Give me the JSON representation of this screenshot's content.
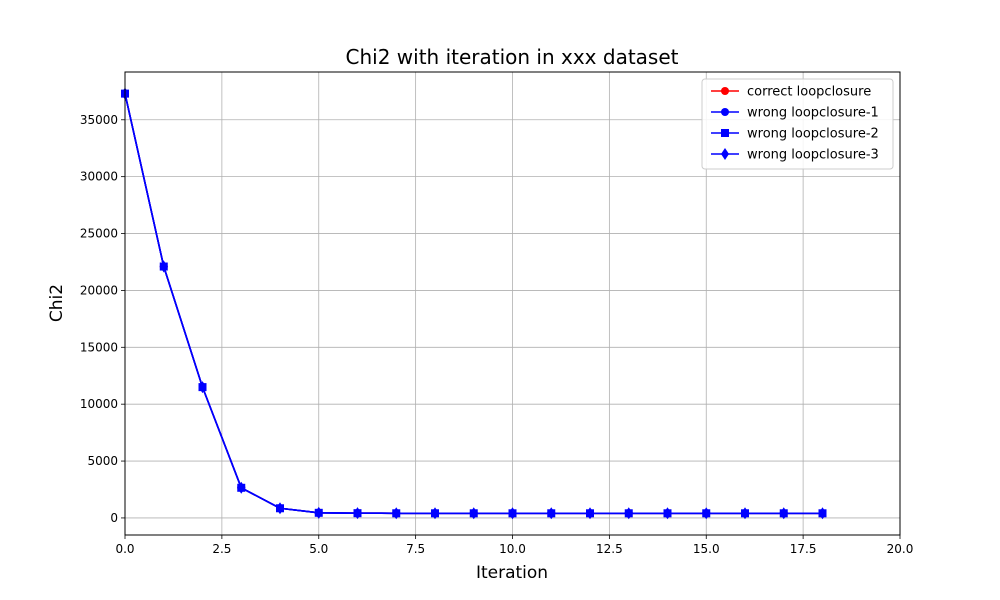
{
  "chart_data": {
    "type": "line",
    "title": "Chi2 with iteration in xxx dataset",
    "xlabel": "Iteration",
    "ylabel": "Chi2",
    "xlim": [
      0,
      20
    ],
    "ylim": [
      -1500,
      39200
    ],
    "xticks": [
      0.0,
      2.5,
      5.0,
      7.5,
      10.0,
      12.5,
      15.0,
      17.5,
      20.0
    ],
    "xtick_labels": [
      "0.0",
      "2.5",
      "5.0",
      "7.5",
      "10.0",
      "12.5",
      "15.0",
      "17.5",
      "20.0"
    ],
    "yticks": [
      0,
      5000,
      10000,
      15000,
      20000,
      25000,
      30000,
      35000
    ],
    "ytick_labels": [
      "0",
      "5000",
      "10000",
      "15000",
      "20000",
      "25000",
      "30000",
      "35000"
    ],
    "grid": true,
    "legend_position": "top-right",
    "x": [
      0,
      1,
      2,
      3,
      4,
      5,
      6,
      7,
      8,
      9,
      10,
      11,
      12,
      13,
      14,
      15,
      16,
      17,
      18
    ],
    "series": [
      {
        "name": "correct loopclosure",
        "color": "#ff0000",
        "marker": "circle",
        "values": [
          37300,
          22100,
          11500,
          2650,
          850,
          450,
          420,
          410,
          410,
          410,
          410,
          410,
          410,
          410,
          410,
          410,
          410,
          410,
          410
        ]
      },
      {
        "name": "wrong loopclosure-1",
        "color": "#0000ff",
        "marker": "circle",
        "values": [
          37300,
          22100,
          11500,
          2650,
          850,
          450,
          420,
          410,
          410,
          410,
          410,
          410,
          410,
          410,
          410,
          410,
          410,
          410,
          410
        ]
      },
      {
        "name": "wrong loopclosure-2",
        "color": "#0000ff",
        "marker": "square",
        "values": [
          37300,
          22100,
          11500,
          2650,
          850,
          450,
          420,
          410,
          410,
          410,
          410,
          410,
          410,
          410,
          410,
          410,
          410,
          410,
          410
        ]
      },
      {
        "name": "wrong loopclosure-3",
        "color": "#0000ff",
        "marker": "diamond",
        "values": [
          37300,
          22100,
          11500,
          2650,
          850,
          450,
          420,
          410,
          410,
          410,
          410,
          410,
          410,
          410,
          410,
          410,
          410,
          410,
          410
        ]
      }
    ]
  }
}
